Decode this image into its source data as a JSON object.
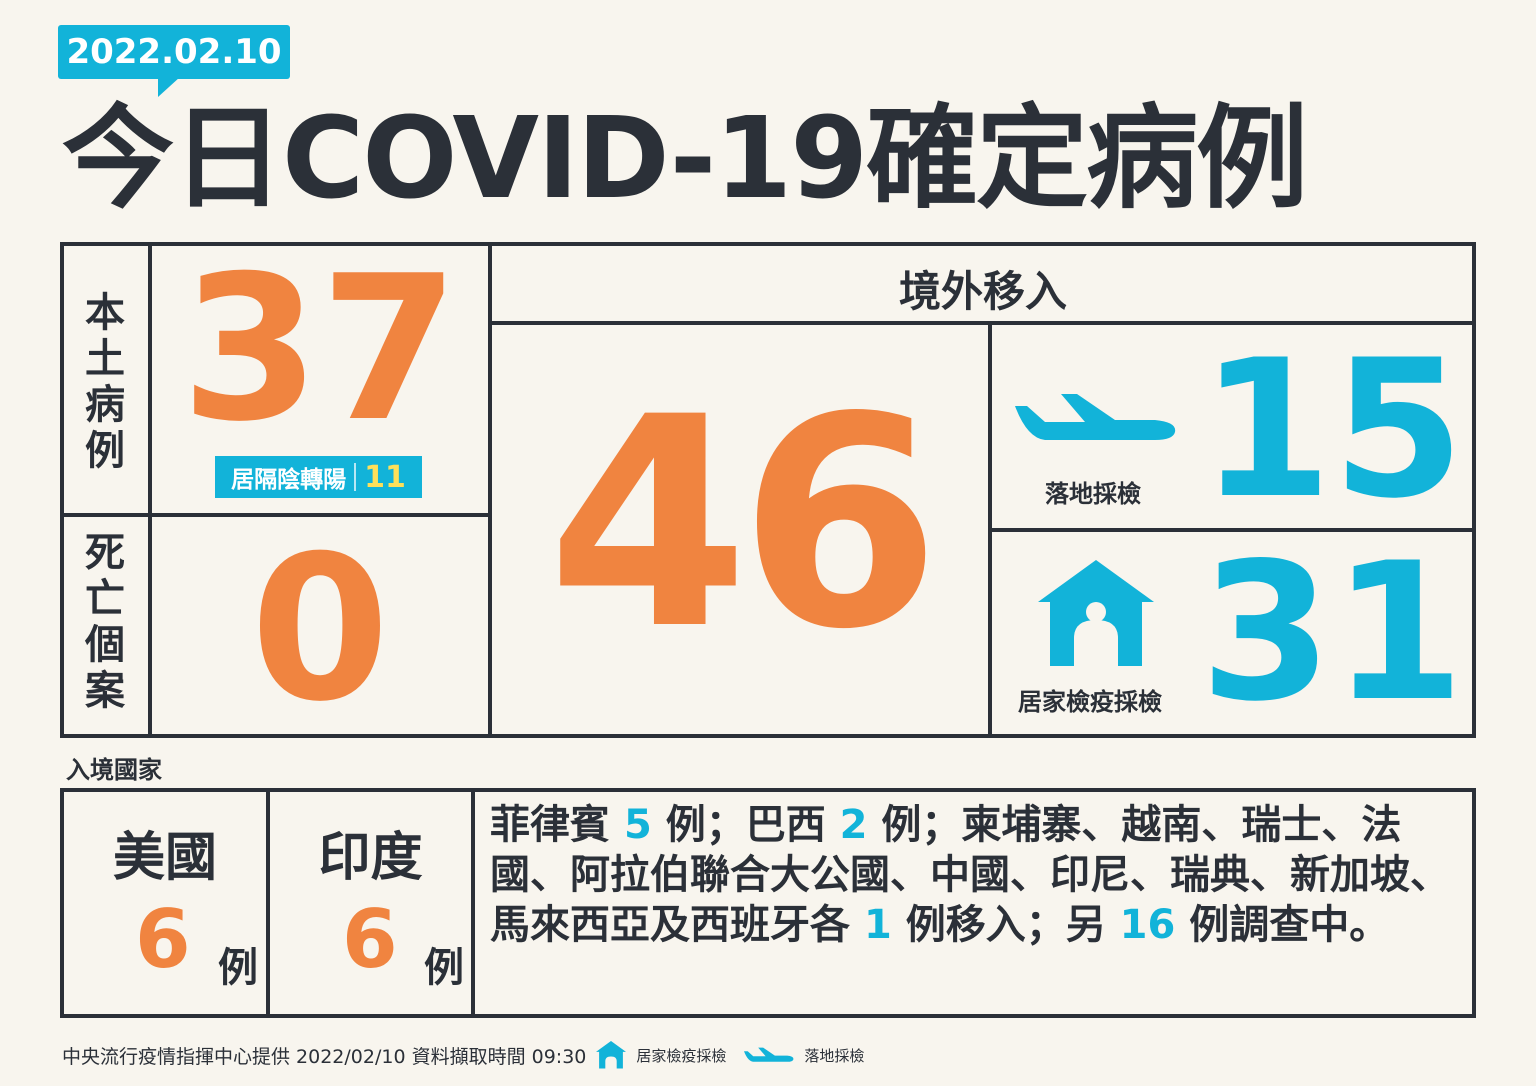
{
  "date": "2022.02.10",
  "title": "今日COVID-19確定病例",
  "local": {
    "label": "本土病例",
    "count": "37",
    "badge_label": "居隔陰轉陽",
    "badge_count": "11"
  },
  "deaths": {
    "label": "死亡個案",
    "count": "0"
  },
  "imported": {
    "label": "境外移入",
    "total": "46",
    "airport": {
      "label": "落地採檢",
      "count": "15",
      "icon": "airplane-icon"
    },
    "home": {
      "label": "居家檢疫採檢",
      "count": "31",
      "icon": "house-icon"
    }
  },
  "countries": {
    "label": "入境國家",
    "items": [
      {
        "name": "美國",
        "count": "6",
        "unit": "例"
      },
      {
        "name": "印度",
        "count": "6",
        "unit": "例"
      }
    ],
    "detail": [
      {
        "t": "菲律賓 "
      },
      {
        "t": "5",
        "hl": true
      },
      {
        "t": " 例；巴西 "
      },
      {
        "t": "2",
        "hl": true
      },
      {
        "t": " 例；柬埔寨、越南、瑞士、法國、阿拉伯聯合大公國、中國、印尼、瑞典、新加坡、馬來西亞及西班牙各 "
      },
      {
        "t": "1",
        "hl": true
      },
      {
        "t": " 例移入；另 "
      },
      {
        "t": "16",
        "hl": true
      },
      {
        "t": " 例調查中。"
      }
    ]
  },
  "footer": {
    "source": "中央流行疫情指揮中心提供 2022/02/10 資料擷取時間 09:30",
    "legend_home": "居家檢疫採檢",
    "legend_air": "落地採檢"
  },
  "colors": {
    "orange": "#f08440",
    "blue": "#12b3d9",
    "dark": "#2b3038",
    "yellow": "#fde05a",
    "background": "#f8f5ee"
  }
}
